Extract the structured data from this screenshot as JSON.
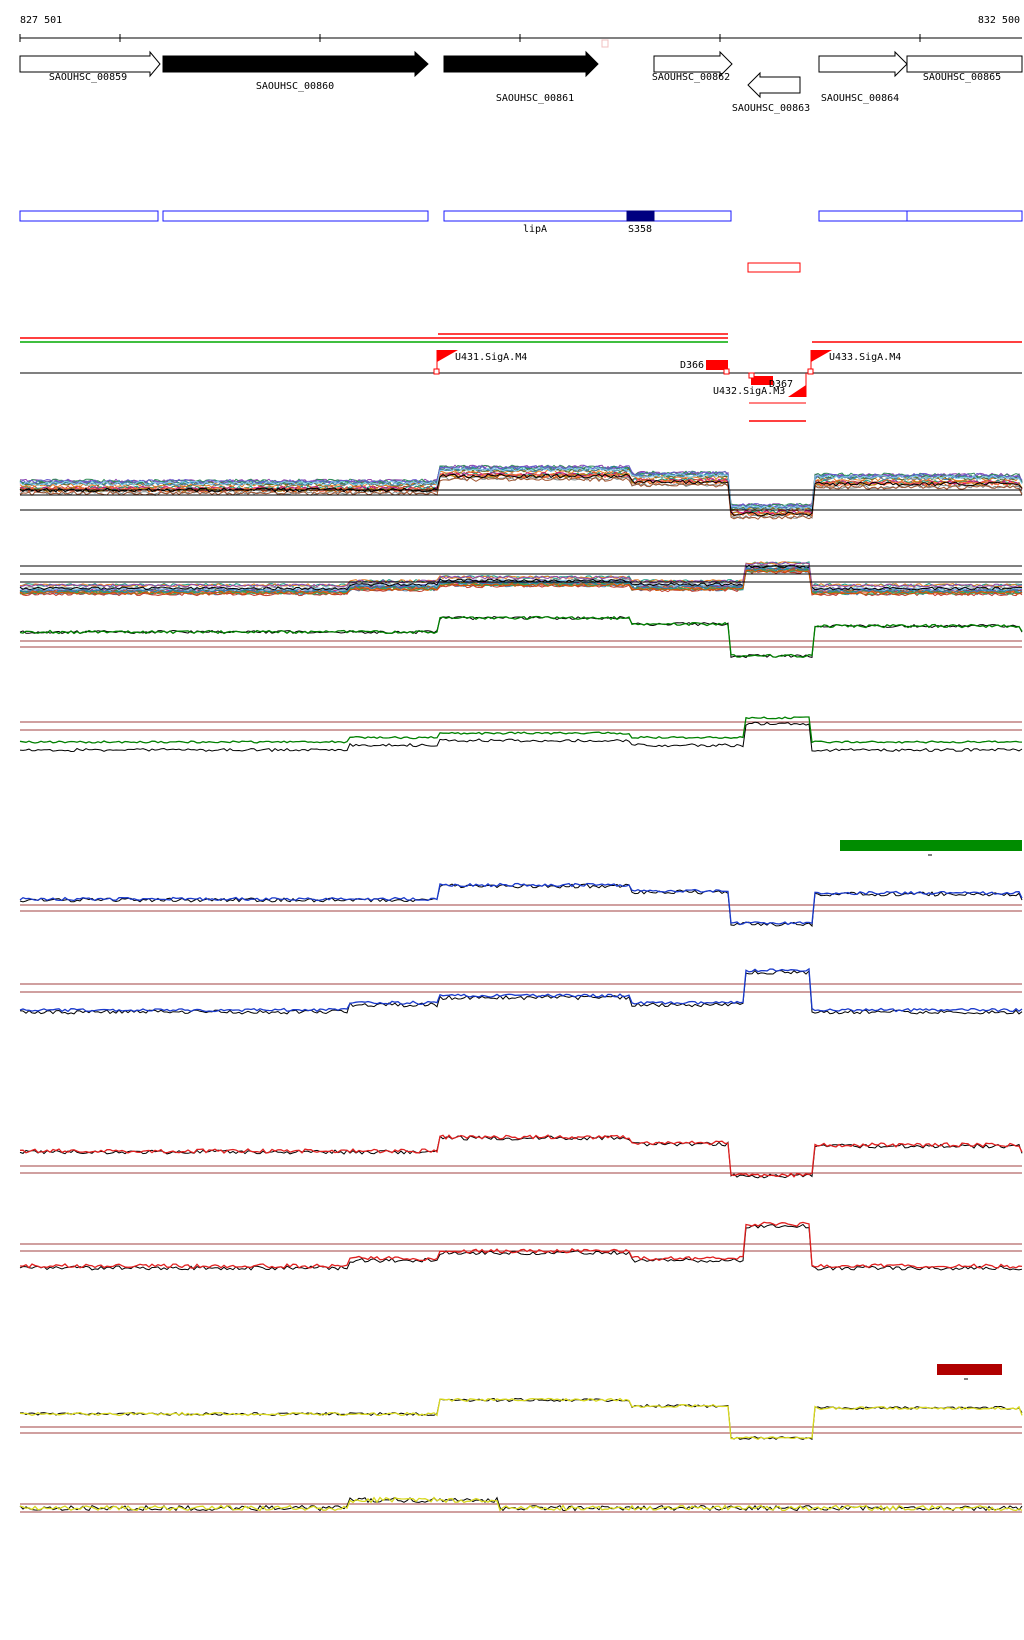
{
  "ruler": {
    "start_label": "827 501",
    "end_label": "832 500"
  },
  "genes": [
    {
      "id": "g859",
      "label": "SAOUHSC_00859"
    },
    {
      "id": "g860",
      "label": "SAOUHSC_00860"
    },
    {
      "id": "g861",
      "label": "SAOUHSC_00861"
    },
    {
      "id": "g862",
      "label": "SAOUHSC_00862"
    },
    {
      "id": "g863",
      "label": "SAOUHSC_00863"
    },
    {
      "id": "g864",
      "label": "SAOUHSC_00864"
    },
    {
      "id": "g865",
      "label": "SAOUHSC_00865"
    }
  ],
  "features": {
    "lipA": "lipA",
    "s358": "S358"
  },
  "promoters": {
    "u431": "U431.SigA.M4",
    "u432": "U432.SigA.M3",
    "u433": "U433.SigA.M4"
  },
  "terminators": {
    "d366": "D366",
    "d367": "D367"
  },
  "colors": {
    "gene_fill_dark": "#000000",
    "annotation_blue": "#1a1aff",
    "feature_navy": "#000080",
    "marker_red": "#ff0000",
    "track_green": "#008000",
    "track_blue": "#1a3acc",
    "track_red": "#e02020",
    "track_yellow": "#d8d820",
    "threshold_line": "#a04040",
    "highlight_green": "#008c00",
    "highlight_darkred": "#b00000"
  }
}
